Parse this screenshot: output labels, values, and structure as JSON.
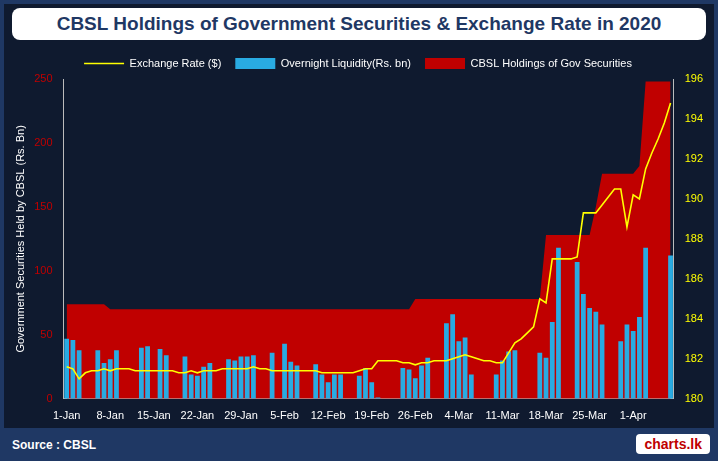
{
  "chart_data": {
    "type": "bar",
    "title": "CBSL Holdings of  Government Securities & Exchange Rate in 2020",
    "y_label": "Government Securities Held by CBSL (Rs. Bn)",
    "annotations": [
      "Source : CBSL",
      "charts.lk"
    ],
    "categories": [
      "1-Jan",
      null,
      null,
      null,
      null,
      null,
      null,
      "8-Jan",
      null,
      null,
      null,
      null,
      null,
      null,
      "15-Jan",
      null,
      null,
      null,
      null,
      null,
      null,
      "22-Jan",
      null,
      null,
      null,
      null,
      null,
      null,
      "29-Jan",
      null,
      null,
      null,
      null,
      null,
      null,
      "5-Feb",
      null,
      null,
      null,
      null,
      null,
      null,
      "12-Feb",
      null,
      null,
      null,
      null,
      null,
      null,
      "19-Feb",
      null,
      null,
      null,
      null,
      null,
      null,
      "26-Feb",
      null,
      null,
      null,
      null,
      null,
      null,
      "4-Mar",
      null,
      null,
      null,
      null,
      null,
      null,
      "11-Mar",
      null,
      null,
      null,
      null,
      null,
      null,
      "18-Mar",
      null,
      null,
      null,
      null,
      null,
      null,
      "25-Mar",
      null,
      null,
      null,
      null,
      null,
      null,
      "1-Apr",
      null,
      null,
      null,
      null,
      null,
      null
    ],
    "series": [
      {
        "name": "CBSL Holdings of Gov Securities",
        "type": "area",
        "color": "#c00000",
        "values": [
          74,
          74,
          74,
          74,
          74,
          74,
          74,
          70,
          70,
          70,
          70,
          70,
          70,
          70,
          70,
          70,
          70,
          70,
          70,
          70,
          70,
          70,
          70,
          70,
          70,
          70,
          70,
          70,
          70,
          70,
          70,
          70,
          70,
          70,
          70,
          70,
          70,
          70,
          70,
          70,
          70,
          70,
          70,
          70,
          70,
          70,
          70,
          70,
          70,
          70,
          70,
          70,
          70,
          70,
          70,
          70,
          78,
          78,
          78,
          78,
          78,
          78,
          78,
          78,
          78,
          78,
          78,
          78,
          78,
          78,
          78,
          78,
          78,
          78,
          78,
          78,
          78,
          128,
          128,
          128,
          128,
          128,
          128,
          128,
          128,
          150,
          176,
          176,
          176,
          176,
          176,
          176,
          182,
          248,
          248,
          248,
          248,
          248
        ]
      },
      {
        "name": "Overnight Liquidity(Rs. bn)",
        "type": "bar",
        "color": "#29abe2",
        "values": [
          47,
          46,
          38,
          null,
          null,
          38,
          28,
          31,
          38,
          null,
          null,
          null,
          40,
          41,
          null,
          39,
          34,
          null,
          null,
          33,
          19,
          18,
          25,
          28,
          null,
          null,
          31,
          30,
          33,
          33,
          34,
          null,
          null,
          36,
          null,
          43,
          29,
          26,
          null,
          null,
          27,
          19,
          13,
          19,
          19,
          null,
          null,
          18,
          24,
          13,
          1,
          null,
          null,
          null,
          24,
          23,
          16,
          26,
          32,
          null,
          null,
          59,
          66,
          45,
          48,
          19,
          null,
          null,
          null,
          19,
          30,
          37,
          38,
          null,
          null,
          null,
          36,
          32,
          60,
          118,
          null,
          null,
          107,
          82,
          71,
          68,
          58,
          null,
          null,
          45,
          58,
          53,
          64,
          118,
          null,
          null,
          null,
          112
        ]
      },
      {
        "name": "Exchange Rate ($)",
        "type": "line",
        "color": "#ffff00",
        "axis": "y2",
        "values": [
          181.6,
          181.5,
          181.0,
          181.3,
          181.4,
          181.4,
          181.5,
          181.4,
          181.5,
          181.5,
          181.5,
          181.4,
          181.4,
          181.4,
          181.4,
          181.4,
          181.4,
          181.4,
          181.3,
          181.3,
          181.4,
          181.3,
          181.4,
          181.4,
          181.4,
          181.5,
          181.5,
          181.5,
          181.5,
          181.5,
          181.6,
          181.5,
          181.5,
          181.4,
          181.4,
          181.4,
          181.4,
          181.4,
          181.4,
          181.4,
          181.4,
          181.3,
          181.3,
          181.3,
          181.3,
          181.3,
          181.3,
          181.4,
          181.5,
          181.5,
          181.9,
          181.9,
          181.9,
          181.9,
          181.8,
          181.8,
          181.7,
          181.8,
          181.8,
          181.9,
          181.9,
          181.9,
          182.0,
          182.1,
          182.2,
          182.1,
          182.0,
          181.9,
          181.9,
          181.8,
          181.8,
          182.3,
          182.8,
          183.0,
          183.3,
          183.6,
          185.0,
          184.8,
          187.0,
          187.0,
          187.0,
          187.0,
          187.1,
          189.3,
          189.3,
          189.3,
          189.7,
          190.1,
          190.5,
          190.5,
          188.6,
          190.2,
          190.0,
          191.5,
          192.3,
          193.0,
          193.8,
          194.8
        ]
      }
    ],
    "ylim": [
      0,
      250
    ],
    "yticks": [
      0,
      50,
      100,
      150,
      200,
      250
    ],
    "y2lim": [
      180,
      196
    ],
    "y2ticks": [
      180,
      182,
      184,
      186,
      188,
      190,
      192,
      194,
      196
    ],
    "grid": false,
    "legend": "top"
  }
}
